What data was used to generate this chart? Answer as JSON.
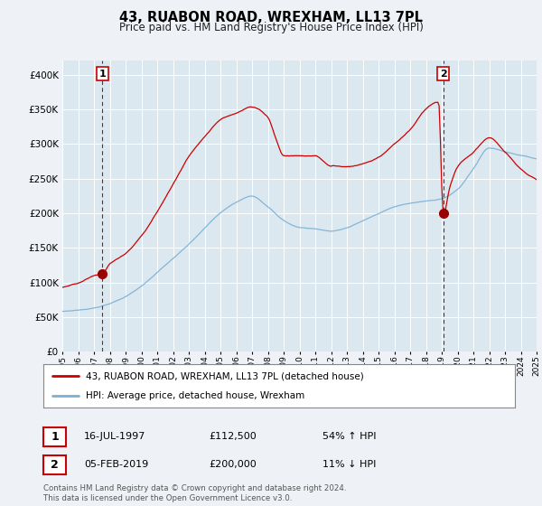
{
  "title": "43, RUABON ROAD, WREXHAM, LL13 7PL",
  "subtitle": "Price paid vs. HM Land Registry's House Price Index (HPI)",
  "red_line_label": "43, RUABON ROAD, WREXHAM, LL13 7PL (detached house)",
  "blue_line_label": "HPI: Average price, detached house, Wrexham",
  "transaction1_date": "16-JUL-1997",
  "transaction1_price": 112500,
  "transaction1_pct": "54% ↑ HPI",
  "transaction2_date": "05-FEB-2019",
  "transaction2_price": 200000,
  "transaction2_pct": "11% ↓ HPI",
  "footnote": "Contains HM Land Registry data © Crown copyright and database right 2024.\nThis data is licensed under the Open Government Licence v3.0.",
  "background_color": "#eef2f7",
  "plot_bg_color": "#dce8f0",
  "grid_color": "#ffffff",
  "red_color": "#cc0000",
  "blue_color": "#7ab0d4",
  "marker_color": "#990000",
  "dashed_line_color": "#cc0000",
  "ylim_min": 0,
  "ylim_max": 420000,
  "x_start_year": 1995,
  "x_end_year": 2025
}
